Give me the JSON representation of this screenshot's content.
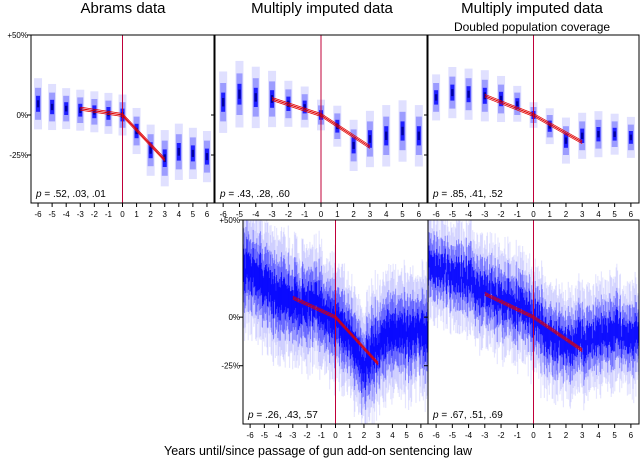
{
  "chart_data": {
    "type": "scatter",
    "xlabel": "Years until/since passage of gun add-on sentencing law",
    "y_ticks": [
      {
        "value": 50,
        "label": "+50%"
      },
      {
        "value": 0,
        "label": "0%"
      },
      {
        "value": -25,
        "label": "-25%"
      }
    ],
    "x_ticks": [
      "-6",
      "-5",
      "-4",
      "-3",
      "-2",
      "-1",
      "0",
      "1",
      "2",
      "3",
      "4",
      "5",
      "6"
    ],
    "ylim": [
      -55,
      50
    ],
    "xlim": [
      -6.5,
      6.5
    ],
    "colors": {
      "data": "#0000ff",
      "trend": "#e00000",
      "vline": "#c0003a",
      "frame": "#000000"
    },
    "panels": [
      {
        "id": "abrams",
        "title": "Abrams data",
        "subtitle": "",
        "style": "yearly",
        "p_label": "p",
        "p_values": "= .52, .03, .01",
        "x": [
          -6,
          -5,
          -4,
          -3,
          -2,
          -1,
          0,
          1,
          2,
          3,
          4,
          5,
          6
        ],
        "y": [
          7,
          5,
          4,
          3,
          2,
          1,
          0,
          -10,
          -22,
          -27,
          -23,
          -24,
          -26
        ],
        "spread": [
          10,
          9,
          8,
          8,
          8,
          8,
          8,
          9,
          10,
          11,
          11,
          10,
          10
        ],
        "trend": [
          [
            -3,
            4
          ],
          [
            0,
            0
          ],
          [
            3,
            -28
          ]
        ]
      },
      {
        "id": "mi",
        "title": "Multiply imputed data",
        "subtitle": "",
        "style": "yearly",
        "p_label": "p",
        "p_values": "= .43, .28, .60",
        "x": [
          -6,
          -5,
          -4,
          -3,
          -2,
          -1,
          0,
          1,
          2,
          3,
          4,
          5,
          6
        ],
        "y": [
          8,
          13,
          11,
          10,
          7,
          5,
          0,
          -7,
          -19,
          -15,
          -13,
          -10,
          -13
        ],
        "spread": [
          12,
          13,
          12,
          11,
          9,
          8,
          6,
          8,
          10,
          11,
          12,
          12,
          12
        ],
        "trend": [
          [
            -3,
            10
          ],
          [
            0,
            0
          ],
          [
            3,
            -20
          ]
        ]
      },
      {
        "id": "mi2",
        "title": "Multiply imputed data",
        "subtitle": "Doubled population coverage",
        "style": "yearly",
        "p_label": "p",
        "p_values": "= .85, .41, .52",
        "x": [
          -6,
          -5,
          -4,
          -3,
          -2,
          -1,
          0,
          1,
          2,
          3,
          4,
          5,
          6
        ],
        "y": [
          11,
          14,
          13,
          12,
          10,
          7,
          0,
          -7,
          -16,
          -13,
          -12,
          -12,
          -14
        ],
        "spread": [
          9,
          10,
          10,
          10,
          9,
          7,
          5,
          7,
          9,
          9,
          9,
          8,
          8
        ],
        "trend": [
          [
            -3,
            12
          ],
          [
            0,
            0
          ],
          [
            3,
            -17
          ]
        ]
      },
      {
        "id": "mi-monthly",
        "title": "",
        "subtitle": "",
        "style": "dense",
        "p_label": "p",
        "p_values": "= .26, .43, .57",
        "curve_x": [
          -6,
          -5,
          -4,
          -3,
          -2,
          -1,
          0,
          1,
          2,
          3,
          4,
          5,
          6
        ],
        "curve_y": [
          25,
          17,
          12,
          8,
          6,
          4,
          -2,
          -10,
          -26,
          -15,
          -8,
          -7,
          -8
        ],
        "spread": 16,
        "trend": [
          [
            -3,
            10
          ],
          [
            0,
            0
          ],
          [
            3,
            -24
          ]
        ]
      },
      {
        "id": "mi2-monthly",
        "title": "",
        "subtitle": "",
        "style": "dense",
        "p_label": "p",
        "p_values": "= .67, .51, .69",
        "curve_x": [
          -6,
          -5,
          -4,
          -3,
          -2,
          -1,
          0,
          1,
          2,
          3,
          4,
          5,
          6
        ],
        "curve_y": [
          25,
          22,
          18,
          13,
          10,
          6,
          0,
          -10,
          -14,
          -12,
          -10,
          -8,
          -9
        ],
        "spread": 14,
        "trend": [
          [
            -3,
            12
          ],
          [
            0,
            0
          ],
          [
            3,
            -17
          ]
        ]
      }
    ]
  }
}
